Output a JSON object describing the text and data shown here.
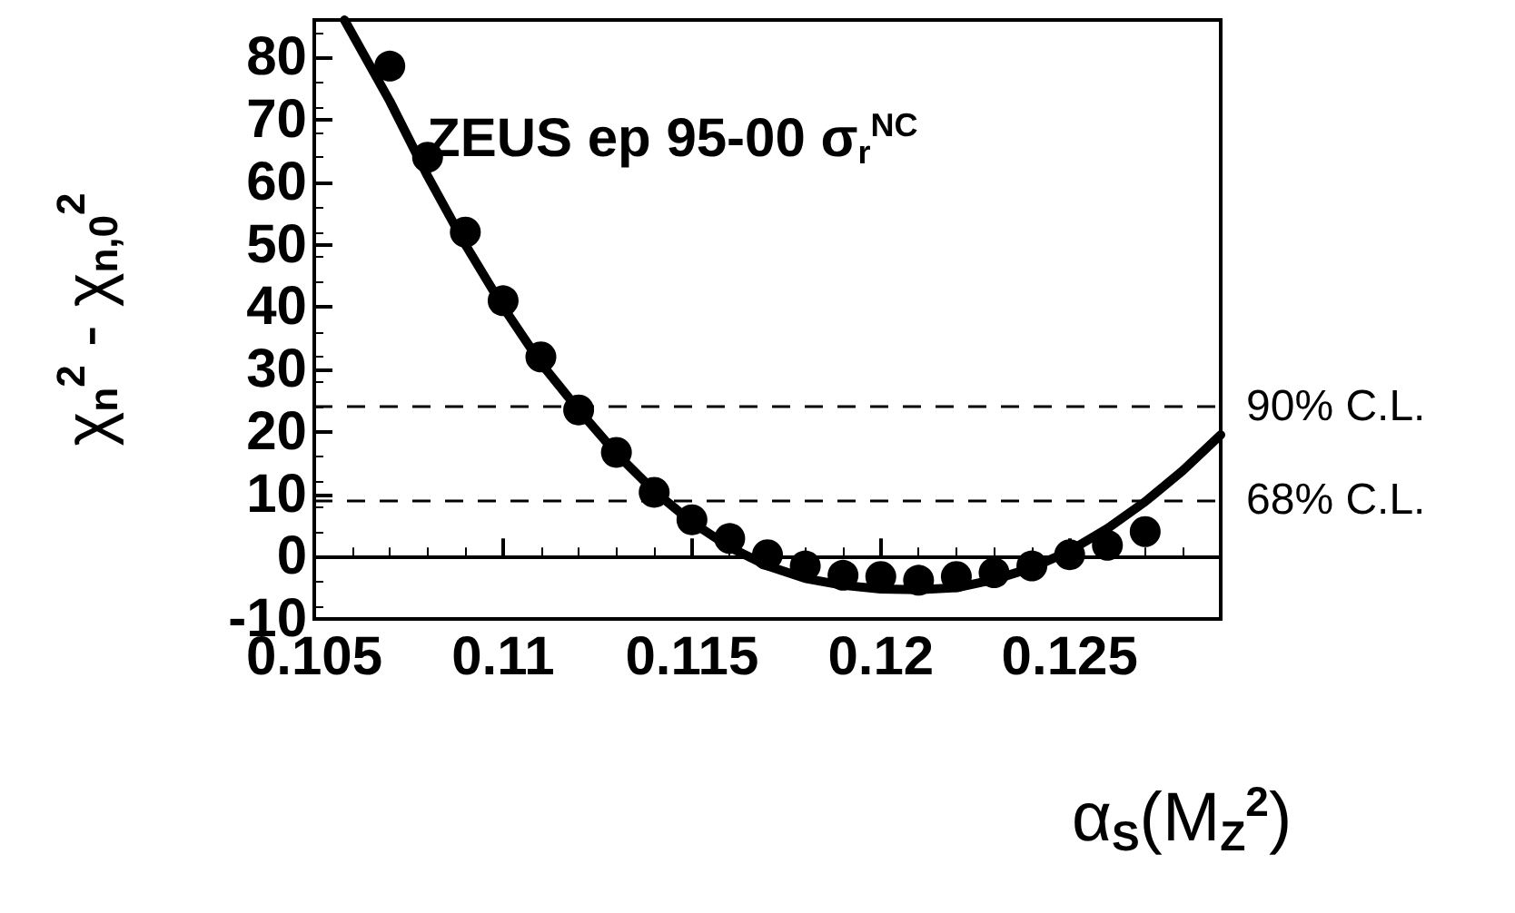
{
  "chart_data": {
    "type": "scatter",
    "xlabel": "α$_{S}$(M$_{Z}$$^{2}$)",
    "ylabel": "χ$_{n}$$^{2}$ - χ$_{n,0}$$^{2}$",
    "annotations": [
      "ZEUS ep 95-00 σ$_{r}$$^{NC}$"
    ],
    "xlim": [
      0.105,
      0.129
    ],
    "xticks": [
      0.105,
      0.11,
      0.115,
      0.12,
      0.125
    ],
    "ylim": [
      -10,
      86
    ],
    "yticks": [
      -10,
      0,
      10,
      20,
      30,
      40,
      50,
      60,
      70,
      80
    ],
    "grid": false,
    "ref_lines": [
      {
        "axis": "y",
        "value": 24,
        "label": "90% C.L.",
        "line_style": "dashed"
      },
      {
        "axis": "y",
        "value": 9,
        "label": "68% C.L.",
        "line_style": "dashed"
      },
      {
        "axis": "y",
        "value": 0,
        "label": null,
        "line_style": "solid"
      }
    ],
    "series": [
      {
        "marker": "circle",
        "color": "#000000",
        "x": [
          0.107,
          0.108,
          0.109,
          0.11,
          0.111,
          0.112,
          0.113,
          0.114,
          0.115,
          0.116,
          0.117,
          0.118,
          0.119,
          0.12,
          0.121,
          0.122,
          0.123,
          0.124,
          0.125,
          0.126,
          0.127
        ],
        "values": [
          78.6,
          64,
          52,
          41,
          32,
          23.5,
          16.7,
          10.3,
          5.9,
          2.9,
          0.3,
          -1.5,
          -3,
          -3.2,
          -3.8,
          -3.2,
          -2.6,
          -1.5,
          0.3,
          1.8,
          4
        ]
      },
      {
        "type": "line",
        "marker": "none",
        "line_style": "solid",
        "color": "#000000",
        "x": [
          0.1058,
          0.107,
          0.108,
          0.109,
          0.11,
          0.111,
          0.112,
          0.113,
          0.114,
          0.115,
          0.116,
          0.117,
          0.118,
          0.119,
          0.12,
          0.121,
          0.122,
          0.123,
          0.124,
          0.125,
          0.126,
          0.127,
          0.128,
          0.129
        ],
        "values": [
          86,
          73,
          61,
          50,
          40,
          31,
          23.5,
          16.5,
          10.5,
          5.5,
          1.5,
          -1.5,
          -3.5,
          -4.6,
          -5.2,
          -5.3,
          -5,
          -3.7,
          -1.8,
          0.9,
          4.5,
          8.8,
          13.8,
          19.5
        ]
      }
    ]
  }
}
